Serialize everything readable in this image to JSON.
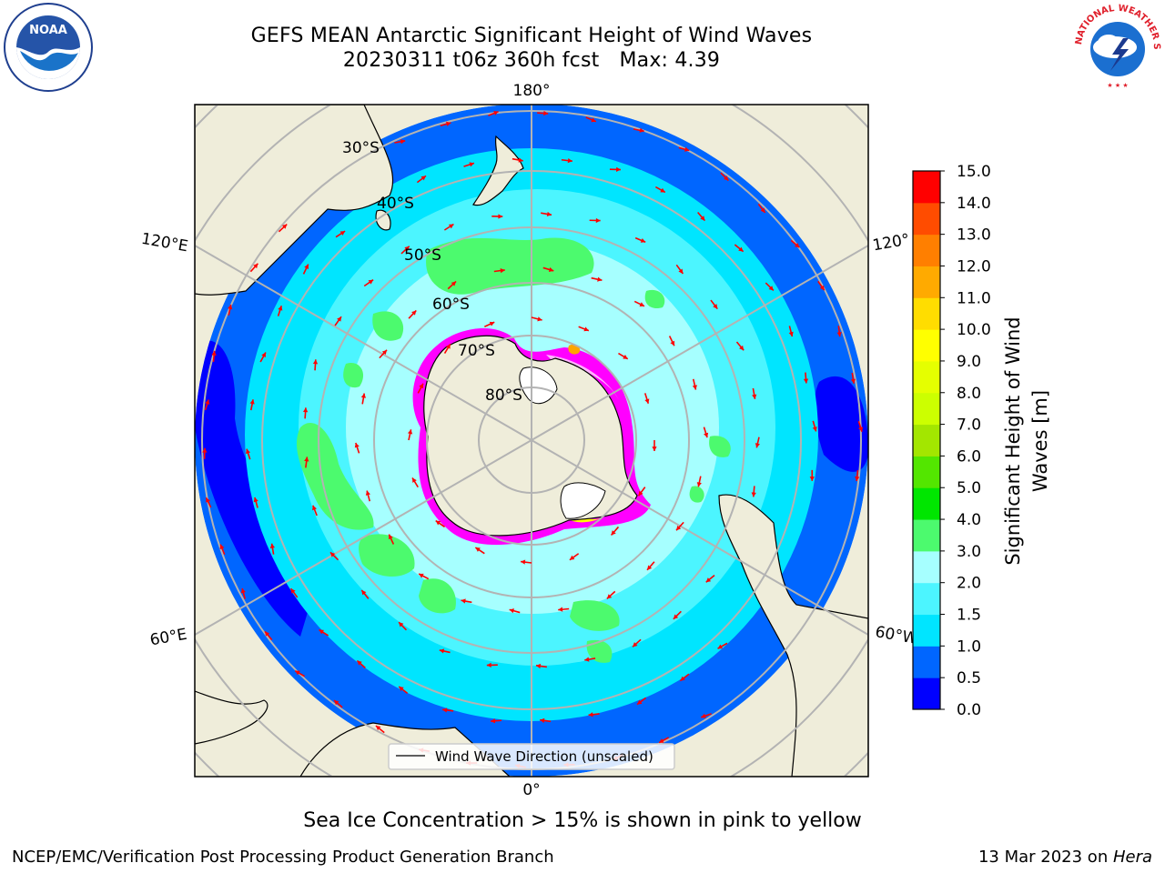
{
  "title": {
    "line1": "GEFS MEAN Antarctic Significant Height of Wind Waves",
    "run": "20230311 t06z 360h fcst",
    "max": "Max: 4.39"
  },
  "map": {
    "projection": "south polar stereographic",
    "meridian_labels": {
      "top": "180°",
      "bottom": "0°",
      "upper_left": "120°E",
      "lower_left": "60°E",
      "upper_right": "120°",
      "lower_right": "60°W"
    },
    "latitude_labels": [
      "30°S",
      "40°S",
      "50°S",
      "60°S",
      "70°S",
      "80°S"
    ],
    "legend": "Wind Wave Direction (unscaled)",
    "vector_color": "#ff0000",
    "land_color": "#efedda",
    "sea_ice_colors": [
      "#ff00ff",
      "#ffb3ff",
      "#ffff00",
      "#ffa500"
    ],
    "field_summary": "Wave heights mostly 0.5–2.5 m; patches 3.0–3.5 m in the 45°S–60°S belt"
  },
  "colorbar": {
    "label": "Significant Height of Wind Waves [m]",
    "ticks": [
      "0.0",
      "0.5",
      "1.0",
      "1.5",
      "2.0",
      "3.0",
      "4.0",
      "5.0",
      "6.0",
      "7.0",
      "8.0",
      "9.0",
      "10.0",
      "11.0",
      "12.0",
      "13.0",
      "14.0",
      "15.0"
    ],
    "colors": [
      "#0000ff",
      "#0066ff",
      "#00e5ff",
      "#4cf5ff",
      "#a6ffff",
      "#4cfa6e",
      "#00e600",
      "#53e600",
      "#a3e600",
      "#ccff00",
      "#e5ff00",
      "#ffff00",
      "#ffdd00",
      "#ffaa00",
      "#ff7f00",
      "#ff4c00",
      "#ff0000"
    ]
  },
  "note": "Sea Ice Concentration > 15% is shown in pink to yellow",
  "credit": "NCEP/EMC/Verification Post Processing Product Generation Branch",
  "date": {
    "text": "13 Mar 2023 on ",
    "host": "Hera"
  },
  "logos": {
    "left": "NOAA",
    "right": "NATIONAL WEATHER SERVICE"
  }
}
